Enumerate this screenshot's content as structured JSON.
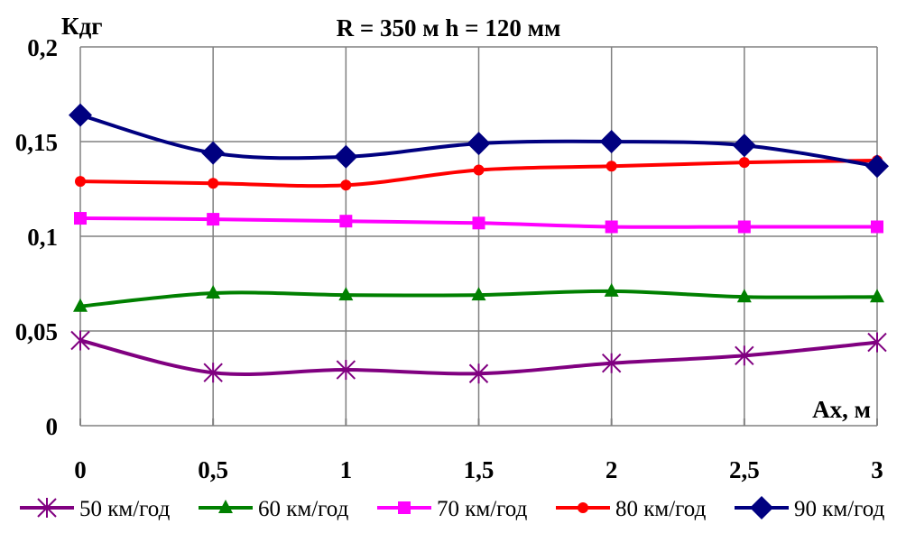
{
  "chart_data": {
    "type": "line",
    "title": "R = 350 м  h = 120 мм",
    "xlabel": "Ax, м",
    "ylabel": "Кдг",
    "x": [
      0,
      0.5,
      1,
      1.5,
      2,
      2.5,
      3
    ],
    "x_tick_labels": [
      "0",
      "0,5",
      "1",
      "1,5",
      "2",
      "2,5",
      "3"
    ],
    "y_tick_labels": [
      "0",
      "0,05",
      "0,1",
      "0,15",
      "0,2"
    ],
    "y_ticks": [
      0,
      0.05,
      0.1,
      0.15,
      0.2
    ],
    "xlim": [
      0,
      3
    ],
    "ylim": [
      0,
      0.2
    ],
    "grid": true,
    "legend_position": "bottom",
    "series": [
      {
        "name": "50 км/год",
        "color": "#800080",
        "marker": "asterisk",
        "values": [
          0.045,
          0.028,
          0.0295,
          0.0275,
          0.033,
          0.037,
          0.044
        ]
      },
      {
        "name": "60 км/год",
        "color": "#008000",
        "marker": "triangle",
        "values": [
          0.063,
          0.07,
          0.069,
          0.069,
          0.071,
          0.068,
          0.068
        ]
      },
      {
        "name": "70 км/год",
        "color": "#ff00ff",
        "marker": "square",
        "values": [
          0.1095,
          0.109,
          0.108,
          0.107,
          0.105,
          0.105,
          0.105
        ]
      },
      {
        "name": "80 км/год",
        "color": "#ff0000",
        "marker": "circle",
        "values": [
          0.129,
          0.128,
          0.127,
          0.135,
          0.137,
          0.139,
          0.14
        ]
      },
      {
        "name": "90 км/год",
        "color": "#000080",
        "marker": "diamond",
        "values": [
          0.164,
          0.144,
          0.142,
          0.149,
          0.15,
          0.148,
          0.137
        ]
      }
    ]
  }
}
